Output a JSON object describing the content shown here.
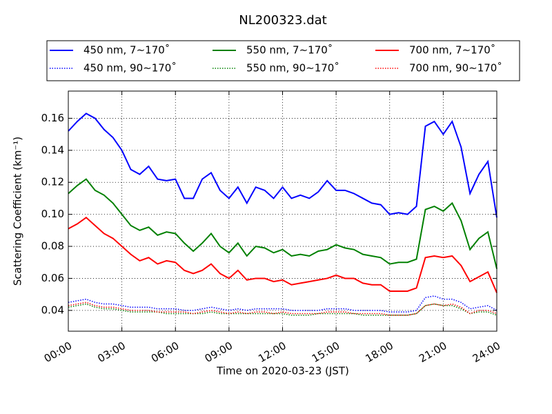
{
  "chart_data": {
    "type": "line",
    "title": "NL200323.dat",
    "x_label": "Time on 2020-03-23 (JST)",
    "y_label": "Scattering Coefficient (km⁻¹)",
    "x": [
      0,
      0.5,
      1,
      1.5,
      2,
      2.5,
      3,
      3.5,
      4,
      4.5,
      5,
      5.5,
      6,
      6.5,
      7,
      7.5,
      8,
      8.5,
      9,
      9.5,
      10,
      10.5,
      11,
      11.5,
      12,
      12.5,
      13,
      13.5,
      14,
      14.5,
      15,
      15.5,
      16,
      16.5,
      17,
      17.5,
      18,
      18.5,
      19,
      19.5,
      20,
      20.5,
      21,
      21.5,
      22,
      22.5,
      23,
      23.5,
      24
    ],
    "xlim": [
      0,
      24
    ],
    "xticks": [
      {
        "value": 0,
        "label": "00:00"
      },
      {
        "value": 3,
        "label": "03:00"
      },
      {
        "value": 6,
        "label": "06:00"
      },
      {
        "value": 9,
        "label": "09:00"
      },
      {
        "value": 12,
        "label": "12:00"
      },
      {
        "value": 15,
        "label": "15:00"
      },
      {
        "value": 18,
        "label": "18:00"
      },
      {
        "value": 21,
        "label": "21:00"
      },
      {
        "value": 24,
        "label": "24:00"
      }
    ],
    "ylim": [
      0.027,
      0.177
    ],
    "yticks": [
      0.04,
      0.06,
      0.08,
      {
        "value": 0.1,
        "label": "0.10"
      },
      0.12,
      0.14,
      0.16
    ],
    "grid": true,
    "legend": "upper center",
    "series": [
      {
        "name": "450 nm, 7∼170˚",
        "color": "#0000ff",
        "linestyle": "solid",
        "values": [
          0.152,
          0.158,
          0.163,
          0.16,
          0.153,
          0.148,
          0.14,
          0.128,
          0.125,
          0.13,
          0.122,
          0.121,
          0.122,
          0.11,
          0.11,
          0.122,
          0.126,
          0.115,
          0.11,
          0.117,
          0.107,
          0.117,
          0.115,
          0.11,
          0.117,
          0.11,
          0.112,
          0.11,
          0.114,
          0.121,
          0.115,
          0.115,
          0.113,
          0.11,
          0.107,
          0.106,
          0.1,
          0.101,
          0.1,
          0.105,
          0.155,
          0.158,
          0.15,
          0.158,
          0.142,
          0.113,
          0.125,
          0.133,
          0.098
        ]
      },
      {
        "name": "450 nm, 90∼170˚",
        "color": "#0000ff",
        "linestyle": "dotted",
        "values": [
          0.045,
          0.046,
          0.047,
          0.045,
          0.044,
          0.044,
          0.043,
          0.042,
          0.042,
          0.042,
          0.041,
          0.041,
          0.041,
          0.04,
          0.04,
          0.041,
          0.042,
          0.041,
          0.04,
          0.041,
          0.04,
          0.041,
          0.041,
          0.041,
          0.041,
          0.04,
          0.04,
          0.04,
          0.04,
          0.041,
          0.041,
          0.041,
          0.04,
          0.04,
          0.04,
          0.04,
          0.039,
          0.039,
          0.039,
          0.04,
          0.048,
          0.049,
          0.047,
          0.047,
          0.045,
          0.041,
          0.042,
          0.043,
          0.04
        ]
      },
      {
        "name": "550 nm, 7∼170˚",
        "color": "#008000",
        "linestyle": "solid",
        "values": [
          0.113,
          0.118,
          0.122,
          0.115,
          0.112,
          0.107,
          0.1,
          0.093,
          0.09,
          0.092,
          0.087,
          0.089,
          0.088,
          0.082,
          0.077,
          0.082,
          0.088,
          0.08,
          0.076,
          0.082,
          0.074,
          0.08,
          0.079,
          0.076,
          0.078,
          0.074,
          0.075,
          0.074,
          0.077,
          0.078,
          0.081,
          0.079,
          0.078,
          0.075,
          0.074,
          0.073,
          0.069,
          0.07,
          0.07,
          0.072,
          0.103,
          0.105,
          0.102,
          0.107,
          0.096,
          0.078,
          0.085,
          0.089,
          0.066
        ]
      },
      {
        "name": "550 nm, 90∼170˚",
        "color": "#008000",
        "linestyle": "dotted",
        "values": [
          0.042,
          0.043,
          0.044,
          0.042,
          0.041,
          0.041,
          0.04,
          0.039,
          0.039,
          0.039,
          0.039,
          0.038,
          0.038,
          0.038,
          0.038,
          0.038,
          0.039,
          0.038,
          0.038,
          0.038,
          0.038,
          0.038,
          0.038,
          0.038,
          0.038,
          0.037,
          0.037,
          0.037,
          0.038,
          0.038,
          0.038,
          0.038,
          0.038,
          0.037,
          0.037,
          0.037,
          0.037,
          0.037,
          0.037,
          0.038,
          0.043,
          0.044,
          0.043,
          0.043,
          0.041,
          0.038,
          0.039,
          0.039,
          0.037
        ]
      },
      {
        "name": "700 nm, 7∼170˚",
        "color": "#ff0000",
        "linestyle": "solid",
        "values": [
          0.091,
          0.094,
          0.098,
          0.093,
          0.088,
          0.085,
          0.08,
          0.075,
          0.071,
          0.073,
          0.069,
          0.071,
          0.07,
          0.065,
          0.063,
          0.065,
          0.069,
          0.063,
          0.06,
          0.065,
          0.059,
          0.06,
          0.06,
          0.058,
          0.059,
          0.056,
          0.057,
          0.058,
          0.059,
          0.06,
          0.062,
          0.06,
          0.06,
          0.057,
          0.056,
          0.056,
          0.052,
          0.052,
          0.052,
          0.054,
          0.073,
          0.074,
          0.073,
          0.074,
          0.068,
          0.058,
          0.061,
          0.064,
          0.051
        ]
      },
      {
        "name": "700 nm, 90∼170˚",
        "color": "#ff0000",
        "linestyle": "dotted",
        "values": [
          0.043,
          0.044,
          0.045,
          0.043,
          0.042,
          0.042,
          0.041,
          0.04,
          0.04,
          0.04,
          0.039,
          0.039,
          0.039,
          0.039,
          0.038,
          0.039,
          0.04,
          0.039,
          0.038,
          0.039,
          0.038,
          0.039,
          0.039,
          0.038,
          0.039,
          0.038,
          0.038,
          0.038,
          0.038,
          0.039,
          0.039,
          0.039,
          0.038,
          0.038,
          0.038,
          0.038,
          0.037,
          0.037,
          0.037,
          0.038,
          0.043,
          0.044,
          0.043,
          0.044,
          0.042,
          0.038,
          0.04,
          0.04,
          0.038
        ]
      }
    ]
  }
}
